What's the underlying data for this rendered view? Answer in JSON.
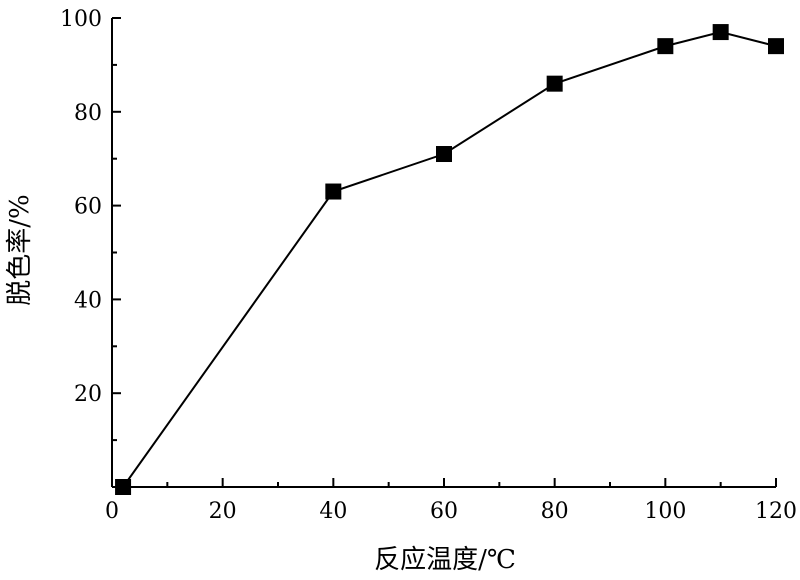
{
  "chart_data": {
    "type": "line",
    "title": "",
    "xlabel": "反应温度/℃",
    "ylabel": "脱色率/%",
    "xlim": [
      0,
      120
    ],
    "ylim": [
      0,
      100
    ],
    "xticks": [
      0,
      20,
      40,
      60,
      80,
      100,
      120
    ],
    "yticks": [
      20,
      40,
      60,
      80,
      100
    ],
    "grid": false,
    "legend": "none",
    "series": [
      {
        "marker": "square",
        "color": "#000000",
        "x": [
          2,
          40,
          60,
          80,
          100,
          110,
          120
        ],
        "y": [
          0,
          63,
          71,
          86,
          94,
          97,
          94
        ]
      }
    ]
  }
}
